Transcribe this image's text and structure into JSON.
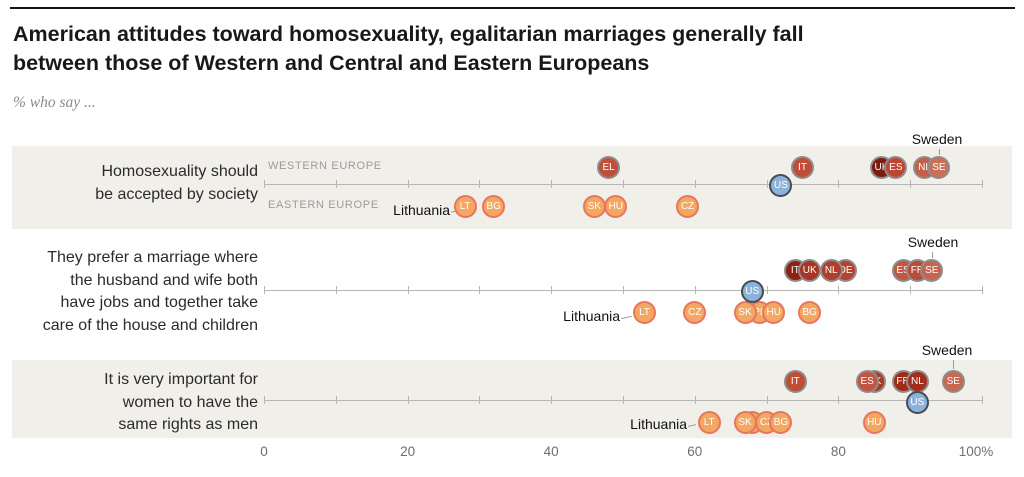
{
  "header": {
    "title_line1": "American attitudes toward homosexuality, egalitarian marriages generally fall",
    "title_line2": "between those of Western and Central and Eastern Europeans",
    "subtitle": "% who say ..."
  },
  "chart_data": {
    "type": "scatter",
    "title": "American attitudes toward homosexuality, egalitarian marriages generally fall between those of Western and Central and Eastern Europeans",
    "subtitle": "% who say ...",
    "x_axis": {
      "range": [
        0,
        100
      ],
      "minor_tick_step": 10,
      "tick_values": [
        0,
        20,
        40,
        60,
        80,
        100
      ],
      "tick_labels": [
        "0",
        "20",
        "40",
        "60",
        "80",
        "100%"
      ]
    },
    "group_labels": {
      "west": "WESTERN EUROPE",
      "east": "EASTERN EUROPE"
    },
    "colors": {
      "band": "#f0efe9",
      "axis": "#b5b5b5",
      "west_ring": "#8d8d8d",
      "east_fill": "#f3a763",
      "east_ring": "#e8765c",
      "us_fill": "#8cb2da",
      "us_ring": "#474b52",
      "point_text": "#ffffff"
    },
    "panels": [
      {
        "statement": [
          "Homosexuality should",
          "be accepted by society"
        ],
        "shaded": true,
        "west": [
          {
            "code": "EL",
            "value": 48,
            "color": "#bf4f38"
          },
          {
            "code": "IT",
            "value": 75,
            "color": "#c04e36"
          },
          {
            "code": "UK",
            "value": 86,
            "color": "#801b0f"
          },
          {
            "code": "ES",
            "value": 88,
            "color": "#bf4531"
          },
          {
            "code": "NL",
            "value": 92,
            "color": "#c65f47"
          },
          {
            "code": "SE",
            "value": 94,
            "color": "#cb7056"
          }
        ],
        "us": {
          "code": "US",
          "value": 72
        },
        "east": [
          {
            "code": "LT",
            "value": 28
          },
          {
            "code": "BG",
            "value": 32
          },
          {
            "code": "SK",
            "value": 46
          },
          {
            "code": "HU",
            "value": 49
          },
          {
            "code": "CZ",
            "value": 59
          }
        ],
        "callouts": {
          "sweden": "Sweden",
          "lithuania": "Lithuania"
        }
      },
      {
        "statement": [
          "They prefer a marriage where",
          "the husband and wife both",
          "have jobs and together take",
          "care of the house and children"
        ],
        "shaded": false,
        "west": [
          {
            "code": "IT",
            "value": 74,
            "color": "#8e2315"
          },
          {
            "code": "UK",
            "value": 76,
            "color": "#a83524"
          },
          {
            "code": "DE",
            "value": 81,
            "color": "#b5442f"
          },
          {
            "code": "NL",
            "value": 79,
            "color": "#b03e2b"
          },
          {
            "code": "ES",
            "value": 89,
            "color": "#c25641"
          },
          {
            "code": "FR",
            "value": 91,
            "color": "#b94c36"
          },
          {
            "code": "SE",
            "value": 93,
            "color": "#c6654b"
          }
        ],
        "us": {
          "code": "US",
          "value": 68
        },
        "east": [
          {
            "code": "PL",
            "value": 69
          },
          {
            "code": "LT",
            "value": 53
          },
          {
            "code": "CZ",
            "value": 60
          },
          {
            "code": "SK",
            "value": 67
          },
          {
            "code": "HU",
            "value": 71
          },
          {
            "code": "BG",
            "value": 76
          }
        ],
        "callouts": {
          "sweden": "Sweden",
          "lithuania": "Lithuania"
        }
      },
      {
        "statement": [
          "It is very important for",
          "women to have the",
          "same rights as men"
        ],
        "shaded": true,
        "west": [
          {
            "code": "IT",
            "value": 74,
            "color": "#c04e37"
          },
          {
            "code": "UK",
            "value": 85,
            "color": "#a93a26"
          },
          {
            "code": "ES",
            "value": 84,
            "color": "#c25440"
          },
          {
            "code": "FR",
            "value": 89,
            "color": "#9e2b18"
          },
          {
            "code": "NL",
            "value": 91,
            "color": "#a32e1b"
          },
          {
            "code": "SE",
            "value": 96,
            "color": "#c76850"
          }
        ],
        "us": {
          "code": "US",
          "value": 91
        },
        "east": [
          {
            "code": "PL",
            "value": 68
          },
          {
            "code": "SK",
            "value": 67
          },
          {
            "code": "CZ",
            "value": 70
          },
          {
            "code": "BG",
            "value": 72
          },
          {
            "code": "LT",
            "value": 62
          },
          {
            "code": "HU",
            "value": 85
          }
        ],
        "callouts": {
          "sweden": "Sweden",
          "lithuania": "Lithuania"
        }
      }
    ]
  }
}
